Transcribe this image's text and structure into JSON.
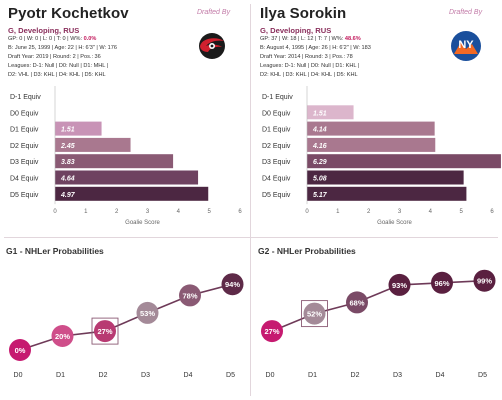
{
  "players": [
    {
      "name": "Pyotr Kochetkov",
      "drafted_by_label": "Drafted By",
      "position_line": "G, Developing, RUS",
      "stats_line": {
        "prefix": "GP: 0 | W: 0 | L: 0 | T: 0 | W%: ",
        "highlight": "0.0%"
      },
      "bio_line": "B: June 25, 1999 | Age: 22 | H: 6'3\" | W: 176",
      "draft_line": "Draft Year: 2019 | Round: 2 | Pos.: 36",
      "leagues_line": "Leagues: D-1: Null | D0: Null | D1: MHL |",
      "leagues_line2": "D2: VHL | D3: KHL | D4: KHL | D5: KHL",
      "team_logo": "carolina-hurricanes-logo",
      "g_chart_title": "G1 - NHLer Probabilities"
    },
    {
      "name": "Ilya Sorokin",
      "drafted_by_label": "Drafted By",
      "position_line": "G, Developing, RUS",
      "stats_line": {
        "prefix": "GP: 37 | W: 18 | L: 12 | T: 7 | W%: ",
        "highlight": "48.6%"
      },
      "bio_line": "B: August 4, 1995 | Age: 26 | H: 6'2\" | W: 183",
      "draft_line": "Draft Year: 2014 | Round: 3 | Pos.: 78",
      "leagues_line": "Leagues: D-1: Null | D0: Null | D1: KHL |",
      "leagues_line2": "D2: KHL | D3: KHL | D4: KHL | D5: KHL",
      "team_logo": "new-york-islanders-logo",
      "g_chart_title": "G2 - NHLer Probabilities"
    }
  ],
  "chart_data": [
    {
      "type": "bar",
      "orientation": "horizontal",
      "categories": [
        "D-1 Equiv",
        "D0 Equiv",
        "D1 Equiv",
        "D2 Equiv",
        "D3 Equiv",
        "D4 Equiv",
        "D5 Equiv"
      ],
      "values": [
        null,
        null,
        1.51,
        2.45,
        3.83,
        4.64,
        4.97
      ],
      "labels": [
        "",
        "",
        "1.51",
        "2.45",
        "3.83",
        "4.64",
        "4.97"
      ],
      "bar_colors": [
        "#dcb6cc",
        "#d4a2c0",
        "#c893b6",
        "#a9788f",
        "#8a5a74",
        "#6e4260",
        "#4c2742"
      ],
      "xlabel": "Goalie Score",
      "xlim": [
        0,
        6
      ],
      "xticks": [
        "0",
        "1",
        "2",
        "3",
        "4",
        "5",
        "6"
      ]
    },
    {
      "type": "bar",
      "orientation": "horizontal",
      "categories": [
        "D-1 Equiv",
        "D0 Equiv",
        "D1 Equiv",
        "D2 Equiv",
        "D3 Equiv",
        "D4 Equiv",
        "D5 Equiv"
      ],
      "values": [
        null,
        1.51,
        4.14,
        4.16,
        6.29,
        5.08,
        5.17
      ],
      "labels": [
        "",
        "1.51",
        "4.14",
        "4.16",
        "6.29",
        "5.08",
        "5.17"
      ],
      "bar_colors": [
        "#dcb6cc",
        "#dcb6cc",
        "#a9788f",
        "#a9788f",
        "#7a4a66",
        "#4c2742",
        "#4c2742"
      ],
      "xlabel": "Goalie Score",
      "xlim": [
        0,
        6
      ],
      "xticks": [
        "0",
        "1",
        "2",
        "3",
        "4",
        "5",
        "6"
      ]
    },
    {
      "type": "line",
      "title": "G1 - NHLer Probabilities",
      "categories": [
        "D0",
        "D1",
        "D2",
        "D3",
        "D4",
        "D5"
      ],
      "values": [
        0,
        20,
        27,
        53,
        78,
        94
      ],
      "labels": [
        "0%",
        "20%",
        "27%",
        "53%",
        "78%",
        "94%"
      ],
      "marker_colors": [
        "#c61a70",
        "#cf4e8a",
        "#b83a72",
        "#a48a98",
        "#8a5a74",
        "#5e2a48"
      ],
      "highlight_index": 2,
      "ylim": [
        0,
        100
      ]
    },
    {
      "type": "line",
      "title": "G2 - NHLer Probabilities",
      "categories": [
        "D0",
        "D1",
        "D2",
        "D3",
        "D4",
        "D5"
      ],
      "values": [
        27,
        52,
        68,
        93,
        96,
        99
      ],
      "labels": [
        "27%",
        "52%",
        "68%",
        "93%",
        "96%",
        "99%"
      ],
      "marker_colors": [
        "#c61a70",
        "#a48a98",
        "#7a4a66",
        "#5a2040",
        "#5a2040",
        "#5a2040"
      ],
      "highlight_index": 1,
      "ylim": [
        0,
        100
      ]
    }
  ]
}
